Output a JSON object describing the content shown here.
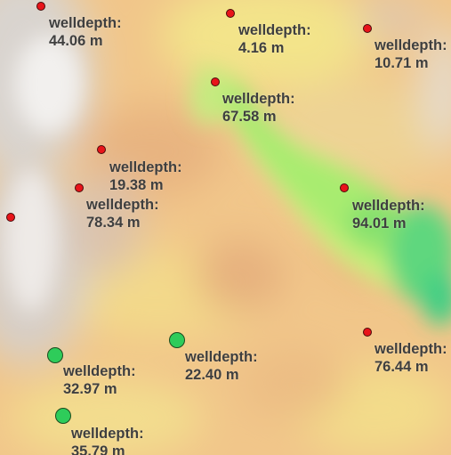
{
  "map": {
    "colors": {
      "marker_red": "#e8141a",
      "marker_green": "#2ecc5a",
      "label_text": "#3f3f3f"
    },
    "wells": [
      {
        "id": "w1",
        "type_label": "welldepth:",
        "value_label": "44.06 m",
        "marker": "red"
      },
      {
        "id": "w2",
        "type_label": "welldepth:",
        "value_label": "4.16 m",
        "marker": "red"
      },
      {
        "id": "w3",
        "type_label": "welldepth:",
        "value_label": "10.71 m",
        "marker": "red"
      },
      {
        "id": "w4",
        "type_label": "welldepth:",
        "value_label": "67.58 m",
        "marker": "red"
      },
      {
        "id": "w5",
        "type_label": "welldepth:",
        "value_label": "19.38 m",
        "marker": "red"
      },
      {
        "id": "w6",
        "type_label": "welldepth:",
        "value_label": "78.34 m",
        "marker": "red"
      },
      {
        "id": "w7",
        "type_label": "welldepth:",
        "value_label": "94.01 m",
        "marker": "red"
      },
      {
        "id": "w8",
        "type_label": "welldepth:",
        "value_label": "76.44 m",
        "marker": "red"
      },
      {
        "id": "w9",
        "type_label": "welldepth:",
        "value_label": "22.40 m",
        "marker": "green"
      },
      {
        "id": "w10",
        "type_label": "welldepth:",
        "value_label": "32.97 m",
        "marker": "green"
      },
      {
        "id": "w11",
        "type_label": "welldepth:",
        "value_label": "35.79 m",
        "marker": "green"
      },
      {
        "id": "w12",
        "marker": "red"
      }
    ]
  }
}
